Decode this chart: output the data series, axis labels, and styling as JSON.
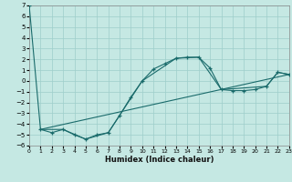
{
  "bg_color": "#c5e8e3",
  "grid_color": "#9ececa",
  "line_color": "#1a6b6b",
  "xlabel": "Humidex (Indice chaleur)",
  "xlim": [
    0,
    23
  ],
  "ylim": [
    -6,
    7
  ],
  "xticks": [
    0,
    1,
    2,
    3,
    4,
    5,
    6,
    7,
    8,
    9,
    10,
    11,
    12,
    13,
    14,
    15,
    16,
    17,
    18,
    19,
    20,
    21,
    22,
    23
  ],
  "yticks": [
    -6,
    -5,
    -4,
    -3,
    -2,
    -1,
    0,
    1,
    2,
    3,
    4,
    5,
    6,
    7
  ],
  "main_x": [
    0,
    1,
    2,
    3,
    4,
    5,
    6,
    7,
    8,
    9,
    10,
    11,
    12,
    13,
    14,
    15,
    16,
    17,
    18,
    19,
    20,
    21,
    22,
    23
  ],
  "main_y": [
    7,
    -4.5,
    -4.8,
    -4.5,
    -5.0,
    -5.4,
    -5.0,
    -4.8,
    -3.2,
    -1.5,
    0.0,
    1.1,
    1.6,
    2.1,
    2.2,
    2.2,
    1.2,
    -0.8,
    -0.9,
    -0.9,
    -0.8,
    -0.5,
    0.8,
    0.6
  ],
  "line2_x": [
    1,
    3,
    5,
    7,
    10,
    13,
    15,
    17,
    21,
    22,
    23
  ],
  "line2_y": [
    -4.5,
    -4.5,
    -5.4,
    -4.8,
    0.0,
    2.1,
    2.2,
    -0.8,
    -0.5,
    0.8,
    0.6
  ],
  "line3_x": [
    1,
    23
  ],
  "line3_y": [
    -4.5,
    0.6
  ]
}
